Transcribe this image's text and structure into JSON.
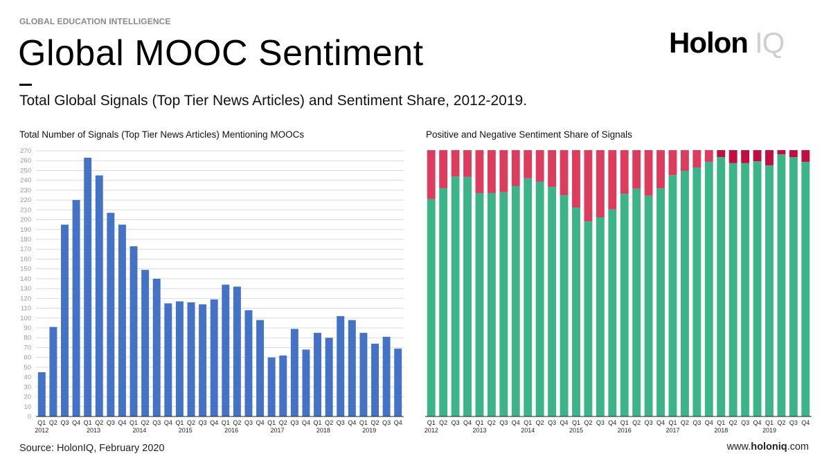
{
  "header": {
    "kicker": "GLOBAL EDUCATION INTELLIGENCE",
    "title": "Global MOOC Sentiment",
    "subtitle": "Total Global Signals (Top Tier News Articles) and Sentiment Share, 2012-2019.",
    "logo_text": "Holon",
    "logo_suffix": "IQ"
  },
  "footer": {
    "source": "Source: HolonIQ, February 2020",
    "url_prefix": "www.",
    "url_brand": "holoniq",
    "url_suffix": ".com"
  },
  "colors": {
    "bar_blue": "#4472c4",
    "positive": "#3db389",
    "negative": "#dc3c5e",
    "negative_dark": "#c20e3e",
    "grid": "#d9d9d9",
    "tick": "#999999"
  },
  "chart_data": [
    {
      "type": "bar",
      "title": "Total Number of Signals (Top Tier News Articles) Mentioning MOOCs",
      "xlabel": "",
      "ylabel": "",
      "ylim": [
        0,
        270
      ],
      "yticks": [
        0,
        10,
        20,
        30,
        40,
        50,
        60,
        70,
        80,
        90,
        100,
        110,
        120,
        130,
        140,
        150,
        160,
        170,
        180,
        190,
        200,
        210,
        220,
        230,
        240,
        250,
        260,
        270
      ],
      "grid": true,
      "quarters": [
        "Q1",
        "Q2",
        "Q3",
        "Q4",
        "Q1",
        "Q2",
        "Q3",
        "Q4",
        "Q1",
        "Q2",
        "Q3",
        "Q4",
        "Q1",
        "Q2",
        "Q3",
        "Q4",
        "Q1",
        "Q2",
        "Q3",
        "Q4",
        "Q1",
        "Q2",
        "Q3",
        "Q4",
        "Q1",
        "Q2",
        "Q3",
        "Q4",
        "Q1",
        "Q2",
        "Q3",
        "Q4"
      ],
      "years": [
        "2012",
        "2013",
        "2014",
        "2015",
        "2016",
        "2017",
        "2018",
        "2019"
      ],
      "values": [
        45,
        91,
        195,
        220,
        263,
        245,
        207,
        195,
        173,
        149,
        140,
        115,
        117,
        116,
        114,
        119,
        134,
        132,
        108,
        98,
        60,
        62,
        89,
        68,
        85,
        80,
        102,
        98,
        85,
        74,
        81,
        69
      ]
    },
    {
      "type": "bar",
      "stacked": true,
      "title": "Positive and Negative Sentiment Share of Signals",
      "xlabel": "",
      "ylabel": "",
      "ylim": [
        0,
        100
      ],
      "grid": false,
      "quarters": [
        "Q1",
        "Q2",
        "Q3",
        "Q4",
        "Q1",
        "Q2",
        "Q3",
        "Q4",
        "Q1",
        "Q2",
        "Q3",
        "Q4",
        "Q1",
        "Q2",
        "Q3",
        "Q4",
        "Q1",
        "Q2",
        "Q3",
        "Q4",
        "Q1",
        "Q2",
        "Q3",
        "Q4",
        "Q1",
        "Q2",
        "Q3",
        "Q4",
        "Q1",
        "Q2",
        "Q3",
        "Q4"
      ],
      "years": [
        "2012",
        "2013",
        "2014",
        "2015",
        "2016",
        "2017",
        "2018",
        "2019"
      ],
      "series": [
        {
          "name": "Positive",
          "values": [
            81.6,
            85.7,
            90.1,
            89.9,
            83.9,
            83.9,
            84.2,
            86.5,
            89.4,
            88.1,
            86.2,
            83.1,
            78.4,
            73.2,
            74.8,
            77.7,
            83.6,
            85.5,
            82.9,
            85.7,
            90.6,
            92.2,
            93.5,
            95.6,
            97.4,
            95.1,
            95.1,
            95.8,
            94.3,
            98.4,
            97.4,
            95.6
          ]
        },
        {
          "name": "Negative",
          "values": [
            18.4,
            14.3,
            9.9,
            10.1,
            16.1,
            16.1,
            15.8,
            13.5,
            10.6,
            11.9,
            13.8,
            16.9,
            21.6,
            26.8,
            25.2,
            22.3,
            16.4,
            14.5,
            17.1,
            14.3,
            9.4,
            7.8,
            6.5,
            4.4,
            2.6,
            4.9,
            4.9,
            4.2,
            5.7,
            1.6,
            2.6,
            4.4
          ]
        }
      ]
    }
  ]
}
